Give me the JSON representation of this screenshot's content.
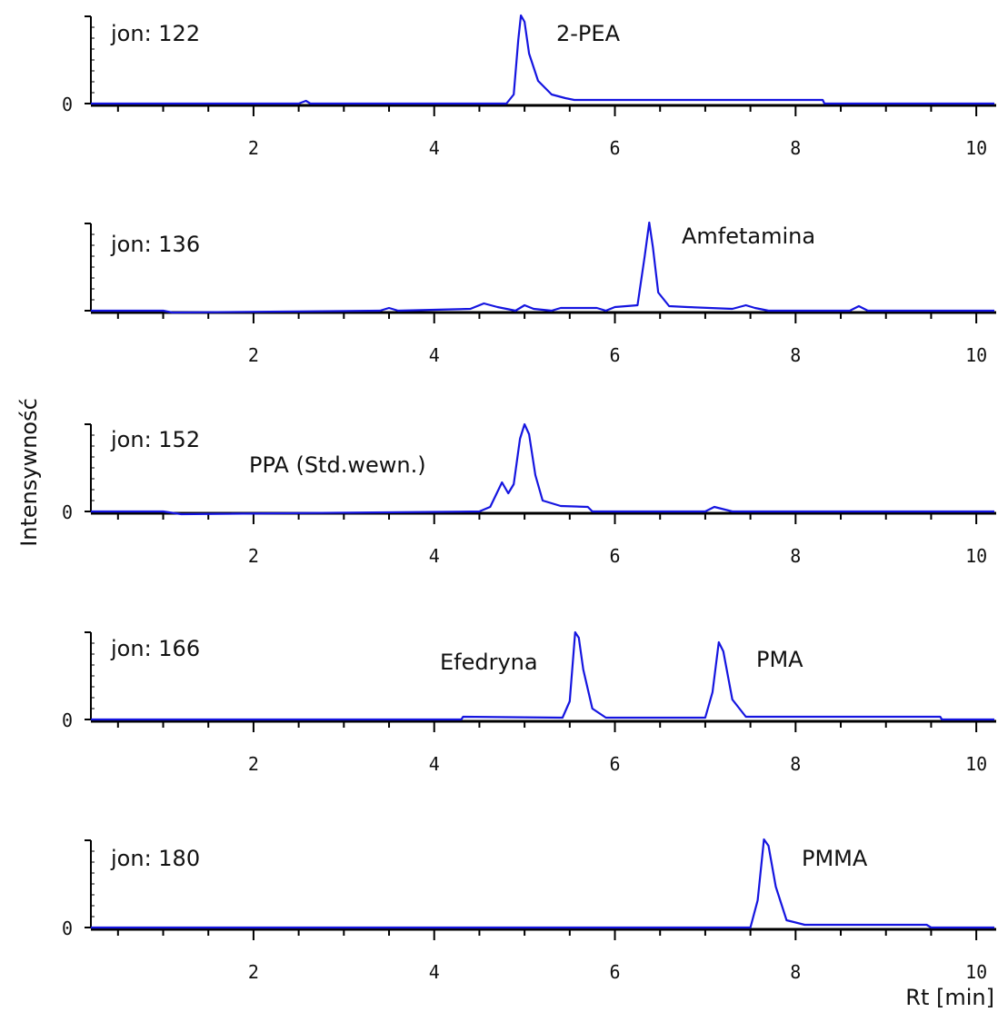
{
  "chart_data": {
    "type": "line",
    "colors": {
      "trace": "#1515e0",
      "axis": "#000000",
      "text": "#111111"
    },
    "xlabel": "Rt [min]",
    "ylabel": "Intensywność",
    "xlim": [
      0.2,
      10.2
    ],
    "x_ticks": [
      "2",
      "4",
      "6",
      "8",
      "10"
    ],
    "panels": [
      {
        "ion_label": "jon: 122",
        "y_zero_label": "0",
        "peak_label": "2-PEA",
        "series": [
          {
            "x": [
              0.2,
              2.5,
              2.58,
              2.63,
              2.7,
              4.8,
              4.88,
              4.93,
              4.96,
              5.0,
              5.05,
              5.15,
              5.3,
              5.45,
              5.55,
              8.3,
              8.32,
              10.2
            ],
            "y": [
              0.0,
              0.0,
              0.03,
              0.0,
              0.0,
              0.0,
              0.1,
              0.7,
              0.97,
              0.9,
              0.55,
              0.25,
              0.1,
              0.06,
              0.04,
              0.04,
              0.0,
              0.0
            ]
          }
        ]
      },
      {
        "ion_label": "jon: 136",
        "y_zero_label": "",
        "peak_label": "Amfetamina",
        "series": [
          {
            "x": [
              0.2,
              1.0,
              1.1,
              3.4,
              3.5,
              3.6,
              4.4,
              4.55,
              4.7,
              4.9,
              5.0,
              5.1,
              5.3,
              5.4,
              5.8,
              5.9,
              6.0,
              6.25,
              6.33,
              6.38,
              6.42,
              6.48,
              6.6,
              6.8,
              7.3,
              7.45,
              7.55,
              7.7,
              8.6,
              8.7,
              8.8,
              10.2
            ],
            "y": [
              0.0,
              0.0,
              -0.02,
              0.0,
              0.03,
              0.0,
              0.02,
              0.08,
              0.04,
              0.0,
              0.06,
              0.02,
              0.0,
              0.03,
              0.03,
              0.0,
              0.04,
              0.06,
              0.6,
              0.97,
              0.7,
              0.2,
              0.05,
              0.04,
              0.02,
              0.06,
              0.03,
              0.0,
              0.0,
              0.05,
              0.0,
              0.0
            ]
          }
        ]
      },
      {
        "ion_label": "jon: 152",
        "y_zero_label": "0",
        "peak_label": "PPA (Std.wewn.)",
        "series": [
          {
            "x": [
              0.2,
              1.0,
              1.2,
              4.5,
              4.62,
              4.75,
              4.82,
              4.88,
              4.95,
              5.0,
              5.05,
              5.12,
              5.2,
              5.4,
              5.7,
              5.75,
              7.0,
              7.1,
              7.3,
              10.2
            ],
            "y": [
              0.0,
              0.0,
              -0.03,
              0.0,
              0.05,
              0.32,
              0.2,
              0.3,
              0.8,
              0.96,
              0.85,
              0.4,
              0.12,
              0.06,
              0.05,
              0.0,
              0.0,
              0.05,
              0.0,
              0.0
            ]
          }
        ]
      },
      {
        "ion_label": "jon: 166",
        "y_zero_label": "0",
        "peak_label": "Efedryna",
        "peak_label_2": "PMA",
        "series": [
          {
            "x": [
              0.2,
              4.3,
              4.32,
              5.42,
              5.5,
              5.56,
              5.6,
              5.65,
              5.75,
              5.9,
              7.0,
              7.08,
              7.15,
              7.2,
              7.3,
              7.45,
              9.6,
              9.62,
              10.2
            ],
            "y": [
              0.0,
              0.0,
              0.03,
              0.02,
              0.2,
              0.96,
              0.9,
              0.55,
              0.12,
              0.02,
              0.02,
              0.3,
              0.85,
              0.75,
              0.22,
              0.03,
              0.03,
              0.0,
              0.0
            ]
          }
        ]
      },
      {
        "ion_label": "jon: 180",
        "y_zero_label": "0",
        "peak_label": "PMMA",
        "series": [
          {
            "x": [
              0.2,
              7.5,
              7.58,
              7.65,
              7.7,
              7.78,
              7.9,
              8.1,
              9.45,
              9.5,
              10.2
            ],
            "y": [
              0.0,
              0.0,
              0.3,
              0.97,
              0.9,
              0.45,
              0.08,
              0.03,
              0.03,
              0.0,
              0.0
            ]
          }
        ]
      }
    ]
  }
}
